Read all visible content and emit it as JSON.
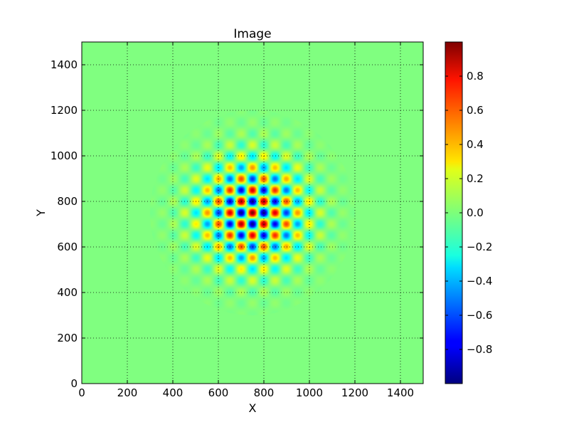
{
  "chart_data": {
    "type": "heatmap",
    "title": "Image",
    "xlabel": "X",
    "ylabel": "Y",
    "xlim": [
      0,
      1500
    ],
    "ylim": [
      0,
      1500
    ],
    "x_ticks": [
      0,
      200,
      400,
      600,
      800,
      1000,
      1200,
      1400
    ],
    "y_ticks": [
      0,
      200,
      400,
      600,
      800,
      1000,
      1200,
      1400
    ],
    "grid": true,
    "colormap": "jet",
    "colorbar": {
      "range": [
        -1.0,
        1.0
      ],
      "ticks": [
        -0.8,
        -0.6,
        -0.4,
        -0.2,
        0.0,
        0.2,
        0.4,
        0.6,
        0.8
      ],
      "tick_labels": [
        "−0.8",
        "−0.6",
        "−0.4",
        "−0.2",
        "0.0",
        "0.2",
        "0.4",
        "0.6",
        "0.8"
      ]
    },
    "field": {
      "description_formula": "value = cos(k*(x-cx)) * cos(k*(y-cy)) * gaussian envelope",
      "center": [
        750,
        750
      ],
      "period": 100,
      "envelope_sigma": 160,
      "support_radius": 450
    }
  }
}
